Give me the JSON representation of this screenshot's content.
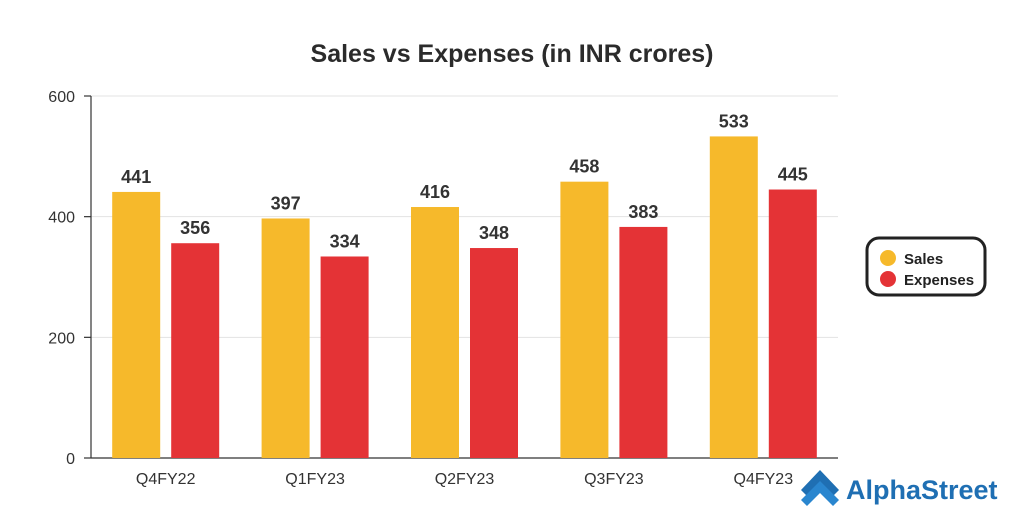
{
  "chart_data": {
    "type": "bar",
    "title": "Sales vs Expenses (in INR crores)",
    "categories": [
      "Q4FY22",
      "Q1FY23",
      "Q2FY23",
      "Q3FY23",
      "Q4FY23"
    ],
    "series": [
      {
        "name": "Sales",
        "values": [
          441,
          397,
          416,
          458,
          533
        ],
        "color": "#F6B92B"
      },
      {
        "name": "Expenses",
        "values": [
          356,
          334,
          348,
          383,
          445
        ],
        "color": "#E43336"
      }
    ],
    "yticks": [
      0,
      200,
      400,
      600
    ],
    "ylim": [
      0,
      600
    ],
    "xlabel": "",
    "ylabel": "",
    "grid": true,
    "legend_position": "right"
  },
  "branding": {
    "name": "AlphaStreet",
    "color": "#1f6fb3"
  }
}
